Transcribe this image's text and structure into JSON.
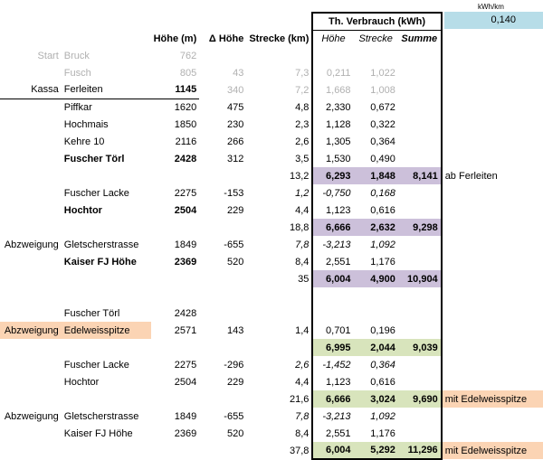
{
  "unit_label": "kWh/km",
  "unit_value": "0,140",
  "section_title": "Th. Verbrauch (kWh)",
  "headers": {
    "hoehe": "Höhe (m)",
    "dhoehe": "Δ Höhe",
    "strecke": "Strecke (km)",
    "sub_hoehe": "Höhe",
    "sub_strecke": "Strecke",
    "sub_summe": "Summe"
  },
  "rows": [
    {
      "a": "Start",
      "b": "Bruck",
      "c": "762",
      "d": "",
      "e": "",
      "f": "",
      "g": "",
      "h": "",
      "note": ""
    },
    {
      "a": "",
      "b": "Fusch",
      "c": "805",
      "d": "43",
      "e": "7,3",
      "f": "0,211",
      "g": "1,022",
      "h": "",
      "note": ""
    },
    {
      "a": "Kassa",
      "b": "Ferleiten",
      "c": "1145",
      "d": "340",
      "e": "7,2",
      "f": "1,668",
      "g": "1,008",
      "h": "",
      "note": ""
    },
    {
      "a": "",
      "b": "Piffkar",
      "c": "1620",
      "d": "475",
      "e": "4,8",
      "f": "2,330",
      "g": "0,672",
      "h": "",
      "note": ""
    },
    {
      "a": "",
      "b": "Hochmais",
      "c": "1850",
      "d": "230",
      "e": "2,3",
      "f": "1,128",
      "g": "0,322",
      "h": "",
      "note": ""
    },
    {
      "a": "",
      "b": "Kehre 10",
      "c": "2116",
      "d": "266",
      "e": "2,6",
      "f": "1,305",
      "g": "0,364",
      "h": "",
      "note": ""
    },
    {
      "a": "",
      "b": "Fuscher Törl",
      "c": "2428",
      "d": "312",
      "e": "3,5",
      "f": "1,530",
      "g": "0,490",
      "h": "",
      "note": ""
    },
    {
      "a": "",
      "b": "",
      "c": "",
      "d": "",
      "e": "13,2",
      "f": "6,293",
      "g": "1,848",
      "h": "8,141",
      "note": "ab Ferleiten"
    },
    {
      "a": "",
      "b": "Fuscher Lacke",
      "c": "2275",
      "d": "-153",
      "e": "1,2",
      "f": "-0,750",
      "g": "0,168",
      "h": "",
      "note": ""
    },
    {
      "a": "",
      "b": "Hochtor",
      "c": "2504",
      "d": "229",
      "e": "4,4",
      "f": "1,123",
      "g": "0,616",
      "h": "",
      "note": ""
    },
    {
      "a": "",
      "b": "",
      "c": "",
      "d": "",
      "e": "18,8",
      "f": "6,666",
      "g": "2,632",
      "h": "9,298",
      "note": ""
    },
    {
      "a": "Abzweigung",
      "b": "Gletscherstrasse",
      "c": "1849",
      "d": "-655",
      "e": "7,8",
      "f": "-3,213",
      "g": "1,092",
      "h": "",
      "note": ""
    },
    {
      "a": "",
      "b": "Kaiser FJ Höhe",
      "c": "2369",
      "d": "520",
      "e": "8,4",
      "f": "2,551",
      "g": "1,176",
      "h": "",
      "note": ""
    },
    {
      "a": "",
      "b": "",
      "c": "",
      "d": "",
      "e": "35",
      "f": "6,004",
      "g": "4,900",
      "h": "10,904",
      "note": ""
    },
    {
      "a": "",
      "b": "",
      "c": "",
      "d": "",
      "e": "",
      "f": "",
      "g": "",
      "h": "",
      "note": ""
    },
    {
      "a": "",
      "b": "Fuscher Törl",
      "c": "2428",
      "d": "",
      "e": "",
      "f": "",
      "g": "",
      "h": "",
      "note": ""
    },
    {
      "a": "Abzweigung",
      "b": "Edelweisspitze",
      "c": "2571",
      "d": "143",
      "e": "1,4",
      "f": "0,701",
      "g": "0,196",
      "h": "",
      "note": ""
    },
    {
      "a": "",
      "b": "",
      "c": "",
      "d": "",
      "e": "",
      "f": "6,995",
      "g": "2,044",
      "h": "9,039",
      "note": ""
    },
    {
      "a": "",
      "b": "Fuscher Lacke",
      "c": "2275",
      "d": "-296",
      "e": "2,6",
      "f": "-1,452",
      "g": "0,364",
      "h": "",
      "note": ""
    },
    {
      "a": "",
      "b": "Hochtor",
      "c": "2504",
      "d": "229",
      "e": "4,4",
      "f": "1,123",
      "g": "0,616",
      "h": "",
      "note": ""
    },
    {
      "a": "",
      "b": "",
      "c": "",
      "d": "",
      "e": "21,6",
      "f": "6,666",
      "g": "3,024",
      "h": "9,690",
      "note": "mit Edelweisspitze"
    },
    {
      "a": "Abzweigung",
      "b": "Gletscherstrasse",
      "c": "1849",
      "d": "-655",
      "e": "7,8",
      "f": "-3,213",
      "g": "1,092",
      "h": "",
      "note": ""
    },
    {
      "a": "",
      "b": "Kaiser FJ Höhe",
      "c": "2369",
      "d": "520",
      "e": "8,4",
      "f": "2,551",
      "g": "1,176",
      "h": "",
      "note": ""
    },
    {
      "a": "",
      "b": "",
      "c": "",
      "d": "",
      "e": "37,8",
      "f": "6,004",
      "g": "5,292",
      "h": "11,296",
      "note": "mit Edelweisspitze"
    }
  ]
}
